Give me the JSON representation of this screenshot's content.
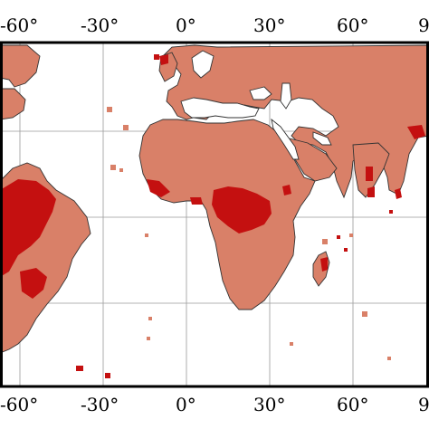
{
  "map": {
    "colors": {
      "ocean": "#ffffff",
      "land": "#d98068",
      "hotspot": "#c41010",
      "hotspot_dark": "#b00808",
      "coastline": "#333333",
      "grid": "#9a9a9a",
      "frame": "#000000"
    },
    "grid": true,
    "top_labels": [
      "-60°",
      "-30°",
      "0°",
      "30°",
      "60°",
      "9"
    ],
    "bottom_labels": [
      "-60°",
      "-30°",
      "0°",
      "30°",
      "60°",
      "9"
    ]
  }
}
